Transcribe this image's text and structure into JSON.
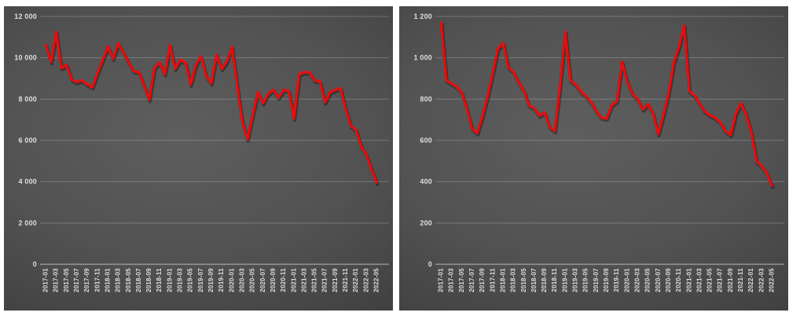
{
  "page": {
    "background_color": "#ffffff"
  },
  "chart_data": [
    {
      "type": "line",
      "title": "",
      "legend": "none",
      "grid": true,
      "ylim": [
        0,
        12000
      ],
      "ytick_step": 2000,
      "ytick_labels": [
        "0",
        "2 000",
        "4 000",
        "6 000",
        "8 000",
        "10 000",
        "12 000"
      ],
      "xtick_every": 2,
      "series_name": "series-left",
      "series_color": "#e01111",
      "label_color": "#dedede",
      "gridline_color": "rgba(255,255,255,0.22)",
      "axisline_color": "rgba(255,255,255,0.5)",
      "categories": [
        "2017-01",
        "2017-02",
        "2017-03",
        "2017-04",
        "2017-05",
        "2017-06",
        "2017-07",
        "2017-08",
        "2017-09",
        "2017-10",
        "2017-11",
        "2017-12",
        "2018-01",
        "2018-02",
        "2018-03",
        "2018-04",
        "2018-05",
        "2018-06",
        "2018-07",
        "2018-08",
        "2018-09",
        "2018-10",
        "2018-11",
        "2018-12",
        "2019-01",
        "2019-02",
        "2019-03",
        "2019-04",
        "2019-05",
        "2019-06",
        "2019-07",
        "2019-08",
        "2019-09",
        "2019-10",
        "2019-11",
        "2019-12",
        "2020-01",
        "2020-02",
        "2020-03",
        "2020-04",
        "2020-05",
        "2020-06",
        "2020-07",
        "2020-08",
        "2020-09",
        "2020-10",
        "2020-11",
        "2020-12",
        "2021-01",
        "2021-02",
        "2021-03",
        "2021-04",
        "2021-05",
        "2021-06",
        "2021-07",
        "2021-08",
        "2021-09",
        "2021-10",
        "2021-11",
        "2021-12",
        "2022-01",
        "2022-02",
        "2022-03",
        "2022-04",
        "2022-05"
      ],
      "values": [
        10600,
        9800,
        11250,
        9500,
        9650,
        8940,
        8830,
        8900,
        8710,
        8570,
        9280,
        9900,
        10550,
        9950,
        10700,
        10260,
        9770,
        9350,
        9300,
        8640,
        7960,
        9510,
        9770,
        9200,
        10600,
        9470,
        9900,
        9770,
        8700,
        9650,
        10070,
        9130,
        8760,
        10150,
        9470,
        9800,
        10520,
        8650,
        6900,
        6050,
        7200,
        8330,
        7800,
        8260,
        8450,
        8070,
        8450,
        8380,
        7060,
        9200,
        9300,
        9290,
        8900,
        8850,
        7850,
        8330,
        8450,
        8520,
        7500,
        6700,
        6500,
        5700,
        5320,
        4570,
        3950
      ]
    },
    {
      "type": "line",
      "title": "",
      "legend": "none",
      "grid": true,
      "ylim": [
        0,
        1200
      ],
      "ytick_step": 200,
      "ytick_labels": [
        "0",
        "200",
        "400",
        "600",
        "800",
        "1 000",
        "1 200"
      ],
      "xtick_every": 2,
      "series_name": "series-right",
      "series_color": "#e01111",
      "label_color": "#dedede",
      "gridline_color": "rgba(255,255,255,0.22)",
      "axisline_color": "rgba(255,255,255,0.5)",
      "categories": [
        "2017-01",
        "2017-02",
        "2017-03",
        "2017-04",
        "2017-05",
        "2017-06",
        "2017-07",
        "2017-08",
        "2017-09",
        "2017-10",
        "2017-11",
        "2017-12",
        "2018-01",
        "2018-02",
        "2018-03",
        "2018-04",
        "2018-05",
        "2018-06",
        "2018-07",
        "2018-08",
        "2018-09",
        "2018-10",
        "2018-11",
        "2018-12",
        "2019-01",
        "2019-02",
        "2019-03",
        "2019-04",
        "2019-05",
        "2019-06",
        "2019-07",
        "2019-08",
        "2019-09",
        "2019-10",
        "2019-11",
        "2019-12",
        "2020-01",
        "2020-02",
        "2020-03",
        "2020-04",
        "2020-05",
        "2020-06",
        "2020-07",
        "2020-08",
        "2020-09",
        "2020-10",
        "2020-11",
        "2020-12",
        "2021-01",
        "2021-02",
        "2021-03",
        "2021-04",
        "2021-05",
        "2021-06",
        "2021-07",
        "2021-08",
        "2021-09",
        "2021-10",
        "2021-11",
        "2021-12",
        "2022-01",
        "2022-02",
        "2022-03",
        "2022-04",
        "2022-05"
      ],
      "values": [
        1170,
        890,
        875,
        860,
        830,
        750,
        655,
        635,
        720,
        815,
        930,
        1045,
        1070,
        955,
        930,
        880,
        840,
        770,
        755,
        720,
        735,
        665,
        645,
        865,
        1125,
        890,
        870,
        838,
        815,
        785,
        743,
        710,
        706,
        770,
        790,
        980,
        883,
        826,
        800,
        750,
        775,
        730,
        630,
        725,
        826,
        977,
        1053,
        1155,
        838,
        818,
        777,
        740,
        721,
        710,
        687,
        645,
        626,
        730,
        780,
        725,
        638,
        498,
        475,
        440,
        381
      ]
    }
  ]
}
